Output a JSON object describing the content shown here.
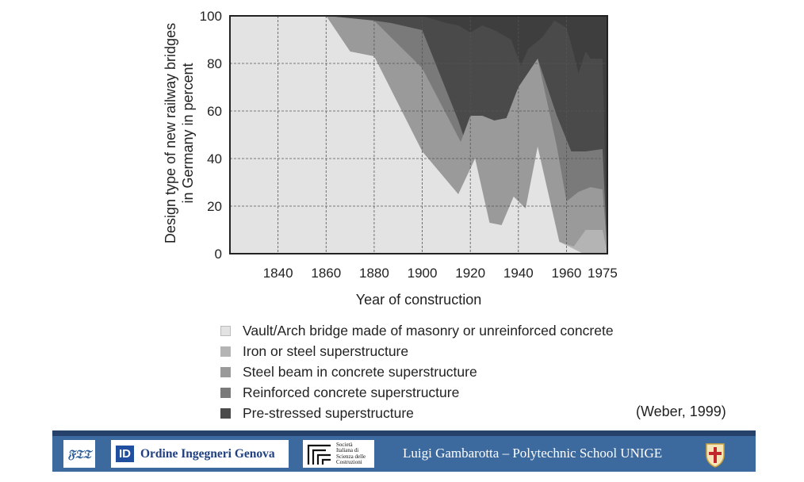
{
  "chart_data": {
    "type": "area",
    "stacked": true,
    "title": "",
    "xlabel": "Year of construction",
    "ylabel_lines": [
      "Design type of new railway bridges",
      "in Germany in percent"
    ],
    "xlim": [
      1820,
      1977
    ],
    "ylim": [
      0,
      100
    ],
    "x_ticks": [
      1840,
      1860,
      1880,
      1900,
      1920,
      1940,
      1960,
      1975
    ],
    "y_ticks": [
      0,
      20,
      40,
      60,
      80,
      100
    ],
    "grid": true,
    "legend_position": "bottom",
    "series": [
      {
        "name": "Vault/Arch bridge made of masonry or unreinforced concrete",
        "color": "#e3e3e3",
        "points": [
          [
            1820,
            100
          ],
          [
            1860,
            100
          ],
          [
            1870,
            85
          ],
          [
            1880,
            83
          ],
          [
            1900,
            43
          ],
          [
            1915,
            25
          ],
          [
            1922,
            40
          ],
          [
            1928,
            13
          ],
          [
            1933,
            12
          ],
          [
            1938,
            24
          ],
          [
            1943,
            19
          ],
          [
            1948,
            45
          ],
          [
            1957,
            5
          ],
          [
            1967,
            0
          ],
          [
            1975,
            0
          ]
        ]
      },
      {
        "name": "Iron or steel superstructure",
        "color": "#b4b4b4",
        "points": [
          [
            1820,
            100
          ],
          [
            1860,
            100
          ],
          [
            1870,
            85
          ],
          [
            1880,
            83
          ],
          [
            1900,
            43
          ],
          [
            1915,
            25
          ],
          [
            1922,
            40
          ],
          [
            1928,
            13
          ],
          [
            1933,
            12
          ],
          [
            1938,
            24
          ],
          [
            1943,
            19
          ],
          [
            1948,
            45
          ],
          [
            1957,
            5
          ],
          [
            1963,
            3
          ],
          [
            1968,
            10
          ],
          [
            1975,
            10
          ]
        ]
      },
      {
        "name": "Steel beam in concrete superstructure",
        "color": "#9a9a9a",
        "points": [
          [
            1820,
            100
          ],
          [
            1860,
            100
          ],
          [
            1870,
            99
          ],
          [
            1880,
            98
          ],
          [
            1900,
            78
          ],
          [
            1916,
            47
          ],
          [
            1920,
            58
          ],
          [
            1925,
            58
          ],
          [
            1930,
            56
          ],
          [
            1935,
            57
          ],
          [
            1940,
            70
          ],
          [
            1948,
            82
          ],
          [
            1956,
            45
          ],
          [
            1960,
            22
          ],
          [
            1965,
            26
          ],
          [
            1970,
            28
          ],
          [
            1975,
            27
          ]
        ]
      },
      {
        "name": "Reinforced concrete superstructure",
        "color": "#7a7a7a",
        "points": [
          [
            1820,
            100
          ],
          [
            1860,
            100
          ],
          [
            1870,
            99
          ],
          [
            1880,
            98
          ],
          [
            1887,
            97
          ],
          [
            1900,
            94
          ],
          [
            1915,
            56
          ],
          [
            1918,
            47
          ],
          [
            1922,
            58
          ],
          [
            1925,
            57
          ],
          [
            1930,
            56
          ],
          [
            1935,
            57
          ],
          [
            1940,
            70
          ],
          [
            1948,
            82
          ],
          [
            1956,
            58
          ],
          [
            1962,
            43
          ],
          [
            1968,
            43
          ],
          [
            1975,
            44
          ]
        ]
      },
      {
        "name": "Pre-stressed superstructure",
        "color": "#4a4a4a",
        "points": [
          [
            1820,
            100
          ],
          [
            1860,
            100
          ],
          [
            1900,
            100
          ],
          [
            1910,
            97
          ],
          [
            1915,
            96
          ],
          [
            1920,
            93
          ],
          [
            1925,
            96
          ],
          [
            1930,
            94
          ],
          [
            1937,
            90
          ],
          [
            1941,
            79
          ],
          [
            1944,
            86
          ],
          [
            1950,
            91
          ],
          [
            1955,
            98
          ],
          [
            1960,
            95
          ],
          [
            1962,
            88
          ],
          [
            1965,
            76
          ],
          [
            1968,
            85
          ],
          [
            1970,
            82
          ],
          [
            1975,
            82
          ]
        ]
      }
    ]
  },
  "citation": "(Weber, 1999)",
  "footer": {
    "logo1": "𝔉𝔗𝔗",
    "logo2_mark": "ID",
    "logo2_text": "Ordine Ingegneri Genova",
    "logo3_lines": [
      "Società",
      "Italiana di",
      "Scienza delle",
      "Costruzioni"
    ],
    "presenter": "Luigi Gambarotta – Polytechnic School UNIGE"
  }
}
